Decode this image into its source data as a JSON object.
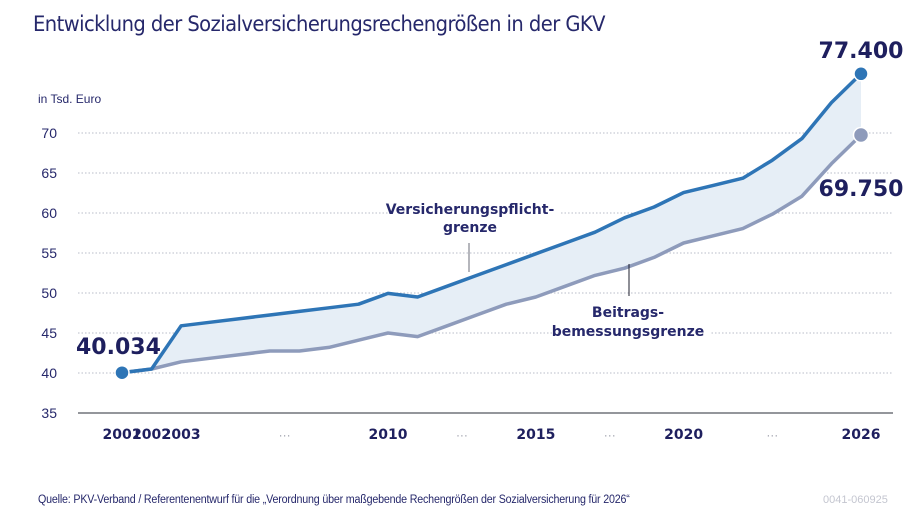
{
  "title": "Entwicklung der Sozialversicherungsrechengrößen in der GKV",
  "unit_label": "in Tsd. Euro",
  "source": "Quelle: PKV-Verband / Referentenentwurf für die „Verordnung über maßgebende Rechengrößen der Sozialversicherung für 2026“",
  "code": "0041-060925",
  "colors": {
    "upper_line": "#2e75b6",
    "lower_line": "#8e9bbb",
    "band_fill": "#e6eef6",
    "text": "#1e1f5e",
    "grid": "#b8bcc8"
  },
  "chart_data": {
    "type": "line",
    "title": "Entwicklung der Sozialversicherungsrechengrößen in der GKV",
    "xlabel": "",
    "ylabel": "in Tsd. Euro",
    "ylim": [
      35,
      70
    ],
    "yticks": [
      35,
      40,
      45,
      50,
      55,
      60,
      65,
      70
    ],
    "grid": true,
    "x": [
      2001,
      2002,
      2003,
      2004,
      2005,
      2006,
      2007,
      2008,
      2009,
      2010,
      2011,
      2012,
      2013,
      2014,
      2015,
      2016,
      2017,
      2018,
      2019,
      2020,
      2021,
      2022,
      2023,
      2024,
      2025,
      2026
    ],
    "x_tick_labels": [
      {
        "label": "2001",
        "year": 2001
      },
      {
        "label": "2002",
        "year": 2002
      },
      {
        "label": "2003",
        "year": 2003
      },
      {
        "label": "···",
        "year": 2006.5
      },
      {
        "label": "2010",
        "year": 2010
      },
      {
        "label": "···",
        "year": 2012.5
      },
      {
        "label": "2015",
        "year": 2015
      },
      {
        "label": "···",
        "year": 2017.5
      },
      {
        "label": "2020",
        "year": 2020
      },
      {
        "label": "···",
        "year": 2023
      },
      {
        "label": "2026",
        "year": 2026
      }
    ],
    "series": [
      {
        "name": "Versicherungspflichtgrenze",
        "label_lines": [
          "Versicherungspflicht-",
          "grenze"
        ],
        "values": [
          40.034,
          40.5,
          45.9,
          46.35,
          46.8,
          47.25,
          47.7,
          48.15,
          48.6,
          49.95,
          49.5,
          50.85,
          52.2,
          53.55,
          54.9,
          56.25,
          57.6,
          59.4,
          60.75,
          62.55,
          63.45,
          64.35,
          66.6,
          69.3,
          73.8,
          77.4
        ]
      },
      {
        "name": "Beitragsbemessungsgrenze",
        "label_lines": [
          "Beitrags-",
          "bemessungsgrenze"
        ],
        "values": [
          40.034,
          40.5,
          41.4,
          41.85,
          42.3,
          42.75,
          42.75,
          43.2,
          44.1,
          45.0,
          44.55,
          45.9,
          47.25,
          48.6,
          49.5,
          50.85,
          52.2,
          53.1,
          54.45,
          56.25,
          57.15,
          58.05,
          59.85,
          62.1,
          66.15,
          69.75
        ]
      }
    ],
    "annotations": [
      {
        "text": "40.034",
        "year": 2001,
        "series": "start"
      },
      {
        "text": "77.400",
        "year": 2026,
        "series": "Versicherungspflichtgrenze"
      },
      {
        "text": "69.750",
        "year": 2026,
        "series": "Beitragsbemessungsgrenze"
      }
    ]
  }
}
